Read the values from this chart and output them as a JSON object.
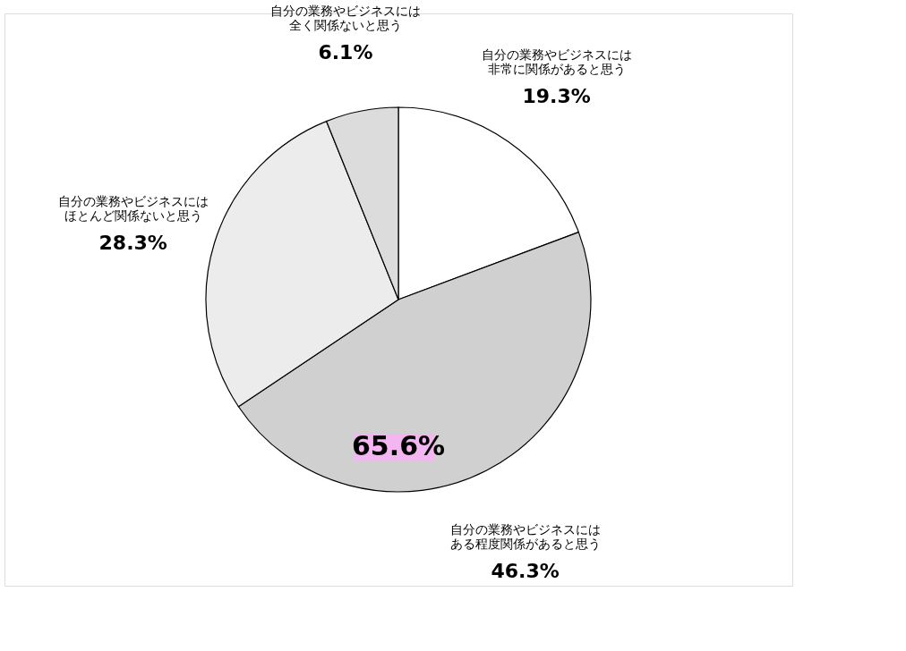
{
  "chart_data": {
    "type": "pie",
    "categories": [
      "自分の業務やビジネスには非常に関係があると思う",
      "自分の業務やビジネスにはある程度関係があると思う",
      "自分の業務やビジネスにはほとんど関係ないと思う",
      "自分の業務やビジネスには全く関係ないと思う"
    ],
    "values": [
      19.3,
      46.3,
      28.3,
      6.1
    ],
    "colors": [
      "#ffffff",
      "#d0d0d0",
      "#ececec",
      "#dcdcdc"
    ],
    "value_labels": [
      "19.3%",
      "46.3%",
      "28.3%",
      "6.1%"
    ],
    "annotations": [
      "65.6%"
    ],
    "legend": false
  }
}
